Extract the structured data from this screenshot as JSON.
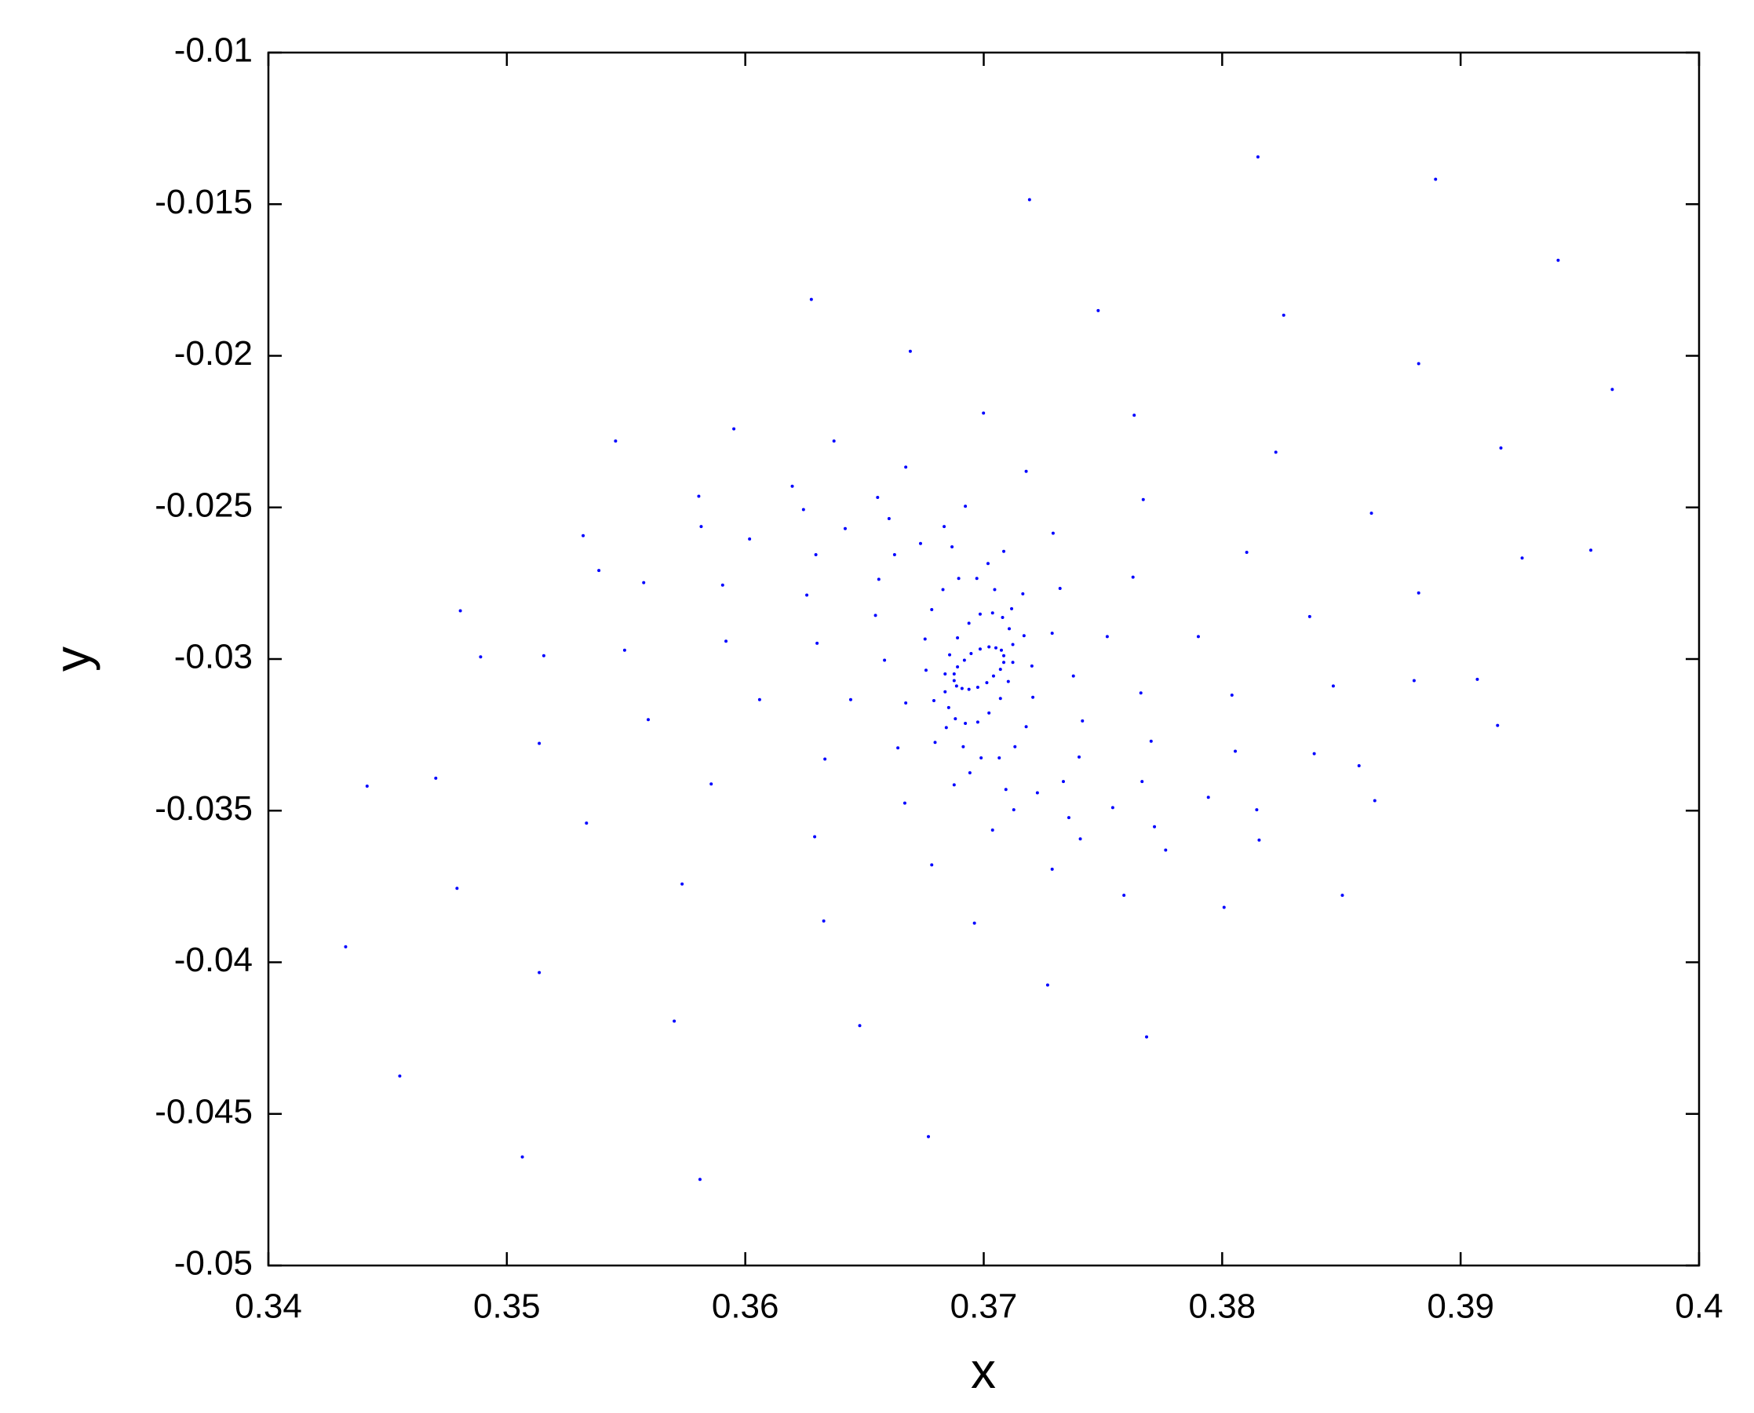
{
  "chart_data": {
    "type": "scatter",
    "xlabel": "x",
    "ylabel": "y",
    "color": "#0000ff",
    "xlim": [
      0.34,
      0.4
    ],
    "ylim": [
      -0.05,
      -0.01
    ],
    "xticks": [
      0.34,
      0.35,
      0.36,
      0.37,
      0.38,
      0.39,
      0.4
    ],
    "yticks": [
      -0.05,
      -0.045,
      -0.04,
      -0.035,
      -0.03,
      -0.025,
      -0.02,
      -0.015,
      -0.01
    ],
    "series": [
      {
        "x": [
          0.3815,
          0.38258,
          0.38225,
          0.38103,
          0.379,
          0.37659,
          0.37414,
          0.37178,
          0.37022,
          0.36938
        ],
        "y": [
          -0.01344,
          -0.01866,
          -0.02318,
          -0.02648,
          -0.02926,
          -0.03112,
          -0.03204,
          -0.03223,
          -0.03178,
          -0.031
        ]
      },
      {
        "x": [
          0.38895,
          0.38824,
          0.38626,
          0.38367,
          0.38041,
          0.37702,
          0.374,
          0.37131,
          0.36975,
          0.36909
        ],
        "y": [
          -0.01418,
          -0.02026,
          -0.02519,
          -0.0286,
          -0.03119,
          -0.03271,
          -0.03323,
          -0.03289,
          -0.03208,
          -0.03097
        ]
      },
      {
        "x": [
          0.39409,
          0.39169,
          0.38824,
          0.38466,
          0.38055,
          0.37664,
          0.37334,
          0.37065,
          0.36923,
          0.36886
        ],
        "y": [
          -0.01685,
          -0.02304,
          -0.02782,
          -0.03089,
          -0.03304,
          -0.03404,
          -0.03404,
          -0.03326,
          -0.03212,
          -0.03089
        ]
      },
      {
        "x": [
          0.39636,
          0.39258,
          0.38805,
          0.38386,
          0.37942,
          0.37541,
          0.37225,
          0.36989,
          0.36881,
          0.36876
        ],
        "y": [
          -0.02111,
          -0.02667,
          -0.03071,
          -0.03312,
          -0.03456,
          -0.0349,
          -0.03441,
          -0.03326,
          -0.03197,
          -0.03071
        ]
      },
      {
        "x": [
          0.39546,
          0.3907,
          0.38574,
          0.38145,
          0.37716,
          0.37357,
          0.37093,
          0.36914,
          0.36853,
          0.36876
        ],
        "y": [
          -0.02641,
          -0.03067,
          -0.03352,
          -0.03497,
          -0.03553,
          -0.03523,
          -0.0343,
          -0.03289,
          -0.0316,
          -0.03049
        ]
      },
      {
        "x": [
          0.39155,
          0.3864,
          0.38155,
          0.37763,
          0.37405,
          0.37126,
          0.36942,
          0.36843,
          0.36838,
          0.3689
        ],
        "y": [
          -0.03219,
          -0.03467,
          -0.03597,
          -0.0363,
          -0.03593,
          -0.03497,
          -0.03375,
          -0.03226,
          -0.03108,
          -0.03026
        ]
      },
      {
        "x": [
          0.38504,
          0.38008,
          0.37588,
          0.37287,
          0.37037,
          0.36876,
          0.36796,
          0.36791,
          0.36838,
          0.36919
        ],
        "y": [
          -0.03779,
          -0.03819,
          -0.03779,
          -0.03693,
          -0.03564,
          -0.03415,
          -0.03275,
          -0.03137,
          -0.03049,
          -0.03004
        ]
      },
      {
        "x": [
          0.37683,
          0.37268,
          0.36961,
          0.36782,
          0.36669,
          0.3664,
          0.36673,
          0.36758,
          0.36857,
          0.36947
        ],
        "y": [
          -0.04246,
          -0.04075,
          -0.03871,
          -0.03679,
          -0.03475,
          -0.03293,
          -0.03145,
          -0.03037,
          -0.02986,
          -0.02982
        ]
      },
      {
        "x": [
          0.36768,
          0.3648,
          0.36329,
          0.36291,
          0.36334,
          0.36442,
          0.36584,
          0.36754,
          0.3689,
          0.36985
        ],
        "y": [
          -0.04575,
          -0.04209,
          -0.03864,
          -0.03586,
          -0.0333,
          -0.03134,
          -0.03004,
          -0.02934,
          -0.0293,
          -0.02967
        ]
      },
      {
        "x": [
          0.3581,
          0.35702,
          0.35735,
          0.35857,
          0.3606,
          0.36301,
          0.36546,
          0.36782,
          0.36938,
          0.37022
        ],
        "y": [
          -0.04716,
          -0.04194,
          -0.03742,
          -0.03412,
          -0.03134,
          -0.02948,
          -0.02856,
          -0.02837,
          -0.02882,
          -0.0296
        ]
      },
      {
        "x": [
          0.35065,
          0.35136,
          0.35334,
          0.35593,
          0.35919,
          0.36258,
          0.3656,
          0.36829,
          0.36985,
          0.37051
        ],
        "y": [
          -0.04642,
          -0.04034,
          -0.03541,
          -0.032,
          -0.02941,
          -0.02789,
          -0.02737,
          -0.02771,
          -0.02852,
          -0.02963
        ]
      },
      {
        "x": [
          0.34551,
          0.34791,
          0.35136,
          0.35494,
          0.35905,
          0.36296,
          0.36626,
          0.36895,
          0.37037,
          0.37074
        ],
        "y": [
          -0.04375,
          -0.03756,
          -0.03278,
          -0.02971,
          -0.02756,
          -0.02656,
          -0.02656,
          -0.02734,
          -0.02848,
          -0.02971
        ]
      },
      {
        "x": [
          0.34324,
          0.34702,
          0.35155,
          0.35574,
          0.36018,
          0.36419,
          0.36735,
          0.36971,
          0.37079,
          0.37084
        ],
        "y": [
          -0.03949,
          -0.03393,
          -0.02989,
          -0.02748,
          -0.02604,
          -0.0257,
          -0.02619,
          -0.02734,
          -0.02863,
          -0.02989
        ]
      },
      {
        "x": [
          0.34414,
          0.3489,
          0.35386,
          0.35815,
          0.36244,
          0.36603,
          0.36867,
          0.37046,
          0.37107,
          0.37084
        ],
        "y": [
          -0.03419,
          -0.02993,
          -0.02708,
          -0.02563,
          -0.02507,
          -0.02537,
          -0.0263,
          -0.02771,
          -0.029,
          -0.03011
        ]
      },
      {
        "x": [
          0.34805,
          0.3532,
          0.35805,
          0.36197,
          0.36555,
          0.36834,
          0.37018,
          0.37117,
          0.37122,
          0.3707
        ],
        "y": [
          -0.02841,
          -0.02593,
          -0.02463,
          -0.0243,
          -0.02467,
          -0.02563,
          -0.02685,
          -0.02834,
          -0.02952,
          -0.03034
        ]
      },
      {
        "x": [
          0.35456,
          0.35952,
          0.36372,
          0.36673,
          0.36923,
          0.37084,
          0.37164,
          0.37169,
          0.37122,
          0.37041
        ],
        "y": [
          -0.02281,
          -0.02241,
          -0.02281,
          -0.02367,
          -0.02496,
          -0.02645,
          -0.02785,
          -0.02923,
          -0.03011,
          -0.03056
        ]
      },
      {
        "x": [
          0.36277,
          0.36692,
          0.36999,
          0.37178,
          0.37291,
          0.3732,
          0.37287,
          0.37202,
          0.37103,
          0.37013
        ],
        "y": [
          -0.01814,
          -0.01985,
          -0.02189,
          -0.02381,
          -0.02585,
          -0.02767,
          -0.02915,
          -0.03023,
          -0.03074,
          -0.03078
        ]
      },
      {
        "x": [
          0.37192,
          0.3748,
          0.37631,
          0.37669,
          0.37626,
          0.37518,
          0.37376,
          0.37206,
          0.3707,
          0.36975
        ],
        "y": [
          -0.01485,
          -0.01851,
          -0.02196,
          -0.02474,
          -0.0273,
          -0.02926,
          -0.03056,
          -0.03126,
          -0.0313,
          -0.03093
        ]
      }
    ]
  }
}
